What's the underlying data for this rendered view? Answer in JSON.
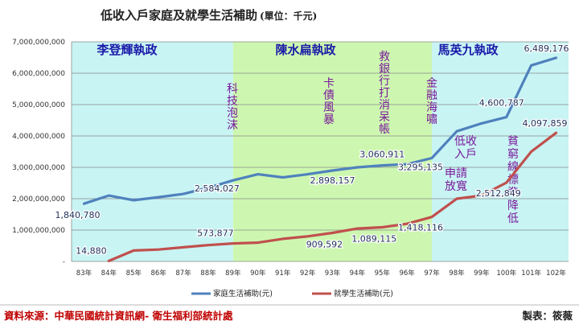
{
  "chart_data": {
    "type": "line",
    "title": "低收入戶家庭及就學生活補助",
    "title_unit": "(單位：千元)",
    "categories": [
      "83年",
      "84年",
      "85年",
      "86年",
      "87年",
      "88年",
      "89年",
      "90年",
      "91年",
      "92年",
      "93年",
      "94年",
      "95年",
      "96年",
      "97年",
      "98年",
      "99年",
      "100年",
      "101年",
      "102年"
    ],
    "ylim": [
      0,
      7000000000
    ],
    "y_ticks": [
      {
        "value": 0,
        "label": "-"
      },
      {
        "value": 1000000000,
        "label": "1,000,000,000"
      },
      {
        "value": 2000000000,
        "label": "2,000,000,000"
      },
      {
        "value": 3000000000,
        "label": "3,000,000,000"
      },
      {
        "value": 4000000000,
        "label": "4,000,000,000"
      },
      {
        "value": 5000000000,
        "label": "5,000,000,000"
      },
      {
        "value": 6000000000,
        "label": "6,000,000,000"
      },
      {
        "value": 7000000000,
        "label": "7,000,000,000"
      }
    ],
    "grid": true,
    "series": [
      {
        "name": "家庭生活補助(元)",
        "color": "#4f81bd",
        "values": [
          1840780000,
          2100000000,
          1950000000,
          2050000000,
          2150000000,
          2350000000,
          2584027000,
          2780000000,
          2680000000,
          2780000000,
          2898157000,
          3000000000,
          3060911000,
          3100000000,
          3295135000,
          4150000000,
          4400000000,
          4600787000,
          6250000000,
          6489176000
        ]
      },
      {
        "name": "就學生活補助(元)",
        "color": "#c0504d",
        "start_index": 1,
        "values": [
          null,
          14880000,
          350000000,
          380000000,
          450000000,
          520000000,
          573877000,
          600000000,
          720000000,
          800000000,
          909592000,
          1050000000,
          1089115000,
          1200000000,
          1418116000,
          2000000000,
          2100000000,
          2512849000,
          3500000000,
          4097859000
        ]
      }
    ],
    "data_labels": [
      {
        "series": 0,
        "index": 0,
        "text": "1,840,780"
      },
      {
        "series": 0,
        "index": 6,
        "text": "2,584,027"
      },
      {
        "series": 0,
        "index": 10,
        "text": "2,898,157"
      },
      {
        "series": 0,
        "index": 12,
        "text": "3,060,911"
      },
      {
        "series": 0,
        "index": 14,
        "text": "3,295,135"
      },
      {
        "series": 0,
        "index": 17,
        "text": "4,600,787"
      },
      {
        "series": 0,
        "index": 19,
        "text": "6,489,176"
      },
      {
        "series": 1,
        "index": 1,
        "text": "14,880"
      },
      {
        "series": 1,
        "index": 6,
        "text": "573,877"
      },
      {
        "series": 1,
        "index": 10,
        "text": "909,592"
      },
      {
        "series": 1,
        "index": 12,
        "text": "1,089,115"
      },
      {
        "series": 1,
        "index": 14,
        "text": "1,418,116"
      },
      {
        "series": 1,
        "index": 17,
        "text": "2,512,849"
      },
      {
        "series": 1,
        "index": 19,
        "text": "4,097,859"
      }
    ],
    "eras": [
      {
        "label": "李登輝執政",
        "color": "#c8f4f4",
        "from": "83年",
        "to": "89年"
      },
      {
        "label": "陳水扁執政",
        "color": "#cdf7b0",
        "from": "89年",
        "to": "97年"
      },
      {
        "label": "馬英九執政",
        "color": "#c8f4f4",
        "from": "97年",
        "to": "102年"
      }
    ],
    "annotations": [
      {
        "text": "科技泡沫",
        "color": "#7a1a9a"
      },
      {
        "text": "卡債風暴",
        "color": "#7a1a9a"
      },
      {
        "text": "救銀行打消呆帳",
        "color": "#7a1a9a"
      },
      {
        "text": "金融海嘯",
        "color": "#7a1a9a"
      },
      {
        "text": "低收入戶申請放寬",
        "color": "#7a1a9a"
      },
      {
        "text": "貧窮線標準降低",
        "color": "#7a1a9a"
      }
    ]
  },
  "footer": {
    "source": "資料來源：中華民國統計資訊網- 衛生福利部統計處",
    "maker": "製表：筱薇"
  }
}
